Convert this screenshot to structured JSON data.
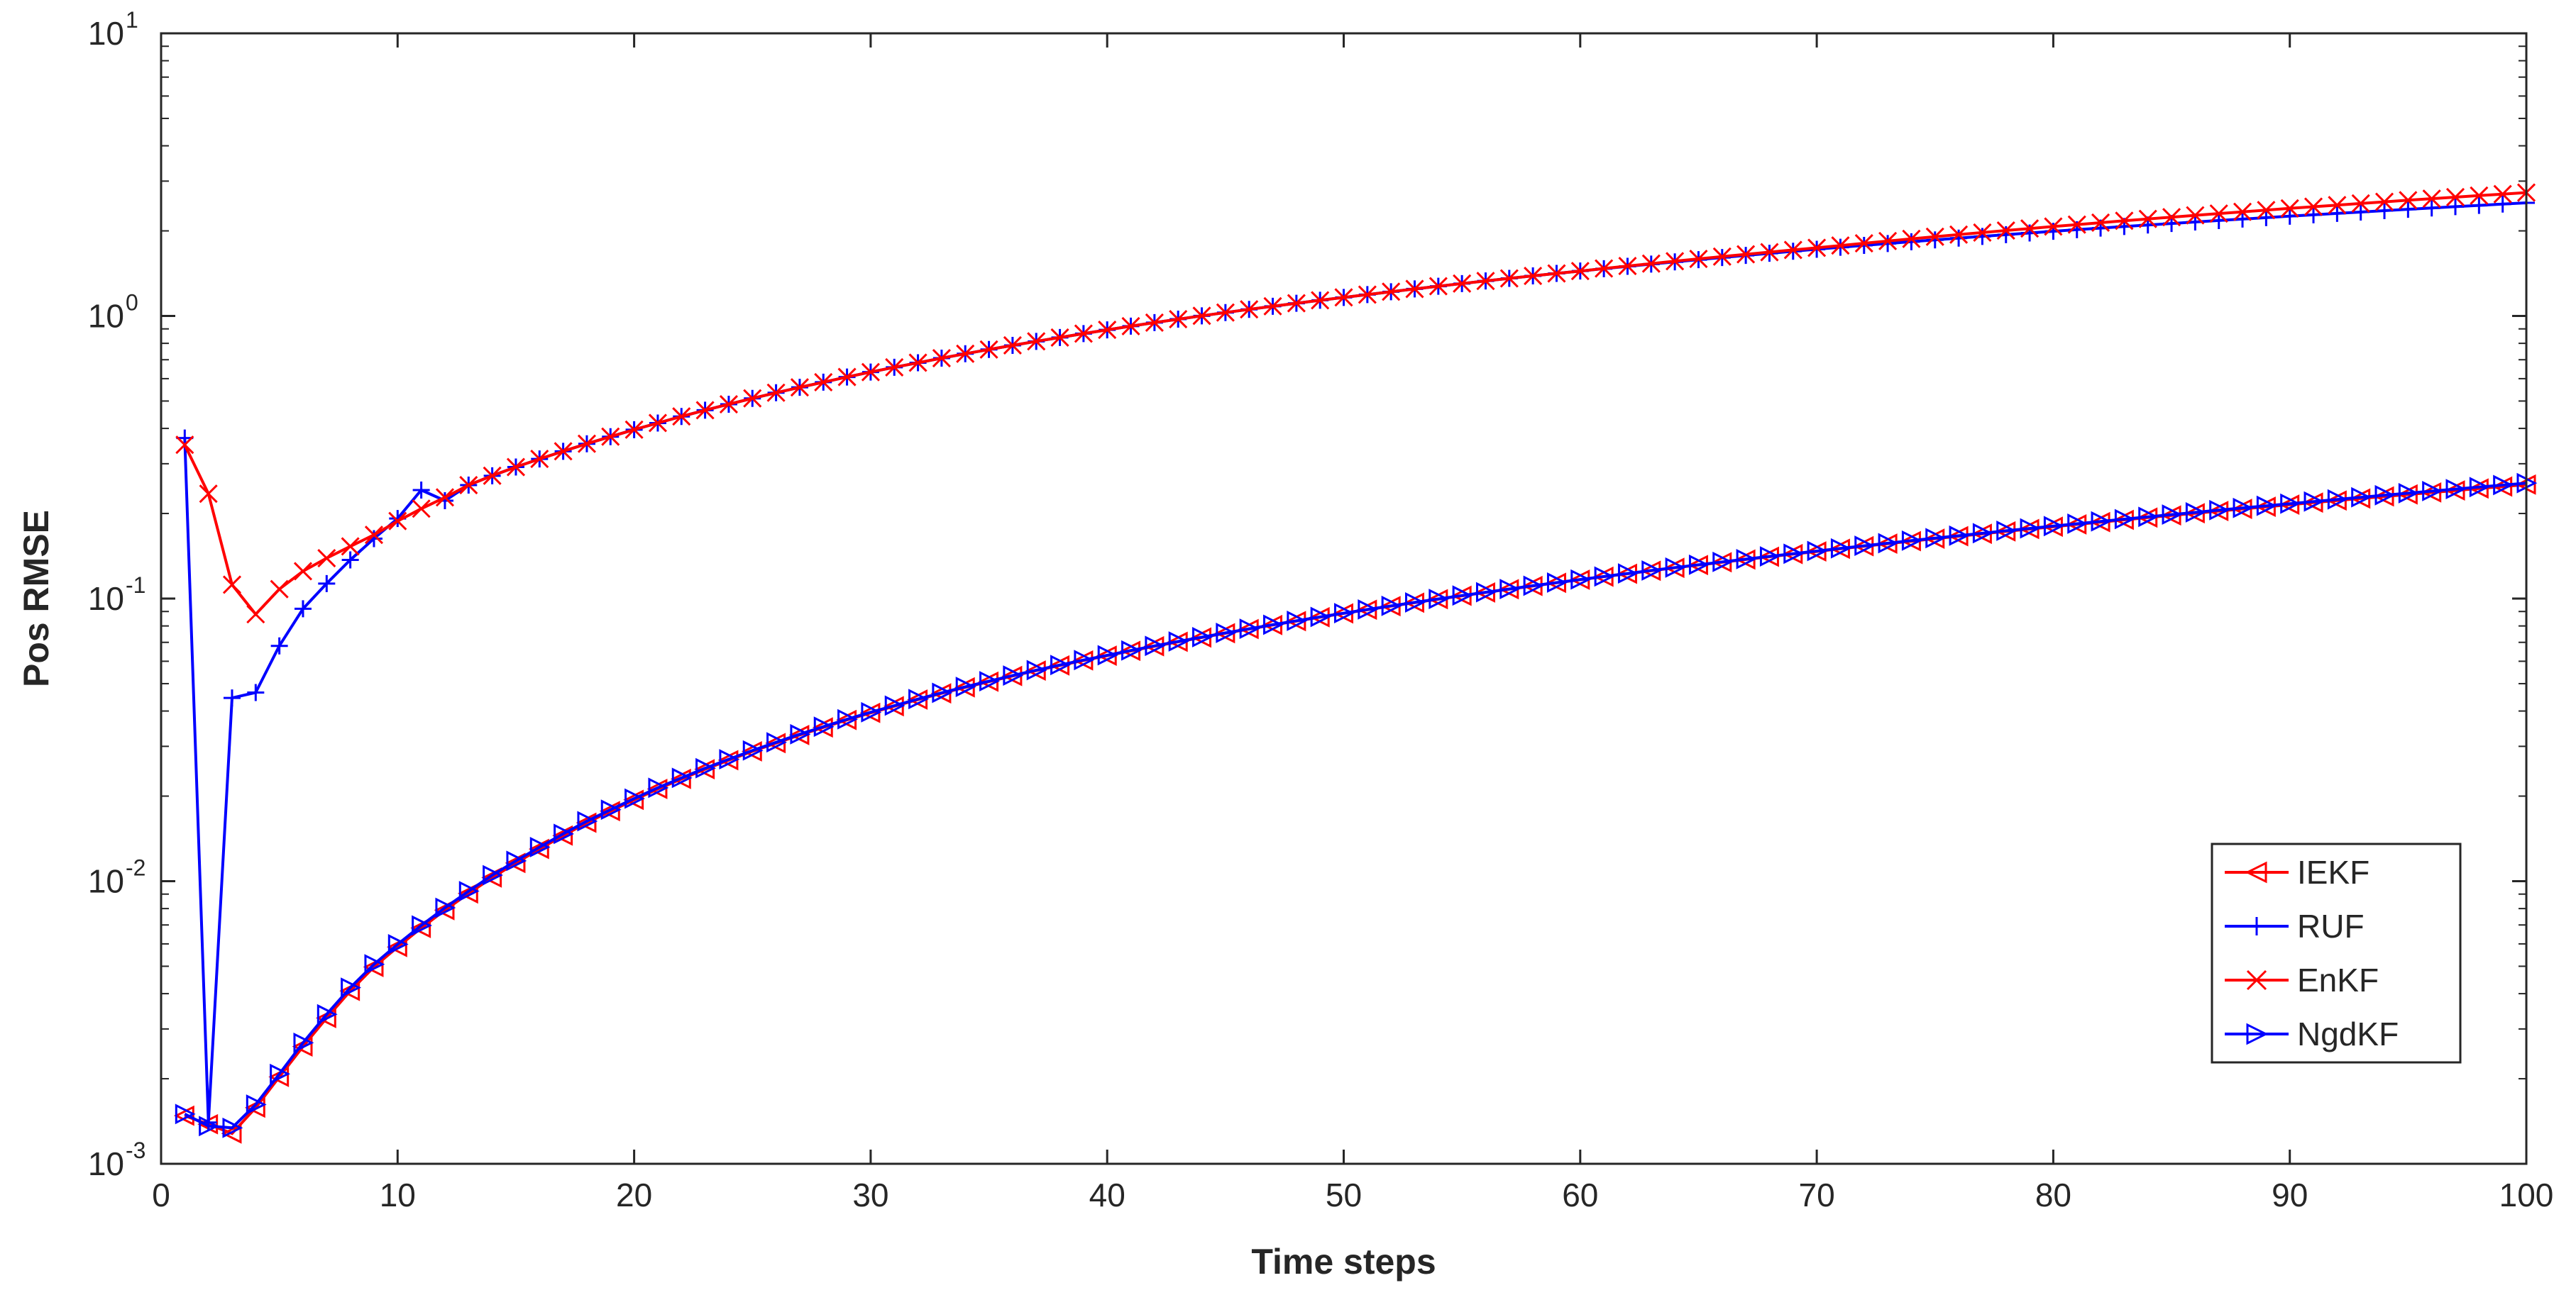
{
  "chart_data": {
    "type": "line",
    "xlabel": "Time steps",
    "ylabel": "Pos RMSE",
    "yscale": "log",
    "xlim": [
      0,
      100
    ],
    "ylim": [
      0.001,
      10
    ],
    "x_ticks": [
      0,
      10,
      20,
      30,
      40,
      50,
      60,
      70,
      80,
      90,
      100
    ],
    "y_ticks": [
      {
        "value": 0.001,
        "base": "10",
        "exp": "-3"
      },
      {
        "value": 0.01,
        "base": "10",
        "exp": "-2"
      },
      {
        "value": 0.1,
        "base": "10",
        "exp": "-1"
      },
      {
        "value": 1,
        "base": "10",
        "exp": "0"
      },
      {
        "value": 10,
        "base": "10",
        "exp": "1"
      }
    ],
    "legend_position": "bottom-right",
    "x": [
      1,
      2,
      3,
      4,
      5,
      6,
      7,
      8,
      9,
      10,
      11,
      12,
      13,
      14,
      15,
      16,
      17,
      18,
      19,
      20,
      21,
      22,
      23,
      24,
      25,
      26,
      27,
      28,
      29,
      30,
      31,
      32,
      33,
      34,
      35,
      36,
      37,
      38,
      39,
      40,
      41,
      42,
      43,
      44,
      45,
      46,
      47,
      48,
      49,
      50,
      51,
      52,
      53,
      54,
      55,
      56,
      57,
      58,
      59,
      60,
      61,
      62,
      63,
      64,
      65,
      66,
      67,
      68,
      69,
      70,
      71,
      72,
      73,
      74,
      75,
      76,
      77,
      78,
      79,
      80,
      81,
      82,
      83,
      84,
      85,
      86,
      87,
      88,
      89,
      90,
      91,
      92,
      93,
      94,
      95,
      96,
      97,
      98,
      99,
      100
    ],
    "series": [
      {
        "name": "IEKF",
        "color": "#ff0000",
        "marker": "triangle-left",
        "values": [
          0.00148,
          0.00138,
          0.00128,
          0.00158,
          0.00203,
          0.0026,
          0.00328,
          0.00409,
          0.00497,
          0.00585,
          0.00683,
          0.0079,
          0.00905,
          0.0103,
          0.0116,
          0.013,
          0.0145,
          0.0161,
          0.0177,
          0.0194,
          0.0212,
          0.023,
          0.0249,
          0.0268,
          0.0288,
          0.0308,
          0.0329,
          0.035,
          0.0372,
          0.0394,
          0.0416,
          0.0439,
          0.0462,
          0.0485,
          0.0508,
          0.0532,
          0.0556,
          0.058,
          0.0604,
          0.0628,
          0.0653,
          0.0678,
          0.0703,
          0.0728,
          0.0754,
          0.078,
          0.0806,
          0.0832,
          0.0859,
          0.0886,
          0.0913,
          0.094,
          0.0967,
          0.0995,
          0.1023,
          0.1051,
          0.1079,
          0.1108,
          0.1137,
          0.1166,
          0.1195,
          0.1224,
          0.1254,
          0.1284,
          0.1314,
          0.1344,
          0.1375,
          0.1406,
          0.1437,
          0.1468,
          0.15,
          0.1532,
          0.1564,
          0.1596,
          0.1629,
          0.1662,
          0.1695,
          0.1728,
          0.1762,
          0.1796,
          0.183,
          0.1864,
          0.1899,
          0.1934,
          0.1969,
          0.2004,
          0.204,
          0.2076,
          0.2112,
          0.2149,
          0.2186,
          0.2223,
          0.226,
          0.2298,
          0.2336,
          0.2374,
          0.2413,
          0.2452,
          0.2491,
          0.253
        ]
      },
      {
        "name": "RUF",
        "color": "#0000ff",
        "marker": "plus",
        "values": [
          0.37,
          0.0014,
          0.0445,
          0.0465,
          0.068,
          0.092,
          0.113,
          0.137,
          0.163,
          0.192,
          0.242,
          0.222,
          0.252,
          0.272,
          0.292,
          0.312,
          0.332,
          0.353,
          0.374,
          0.396,
          0.418,
          0.441,
          0.464,
          0.487,
          0.511,
          0.535,
          0.559,
          0.583,
          0.608,
          0.633,
          0.658,
          0.683,
          0.709,
          0.735,
          0.761,
          0.787,
          0.813,
          0.839,
          0.866,
          0.893,
          0.92,
          0.947,
          0.974,
          1.001,
          1.028,
          1.055,
          1.082,
          1.109,
          1.136,
          1.163,
          1.19,
          1.218,
          1.246,
          1.274,
          1.302,
          1.33,
          1.358,
          1.386,
          1.414,
          1.442,
          1.47,
          1.498,
          1.526,
          1.554,
          1.582,
          1.61,
          1.638,
          1.666,
          1.694,
          1.722,
          1.75,
          1.777,
          1.804,
          1.831,
          1.858,
          1.885,
          1.912,
          1.939,
          1.966,
          1.993,
          2.02,
          2.046,
          2.072,
          2.098,
          2.124,
          2.15,
          2.176,
          2.202,
          2.228,
          2.254,
          2.28,
          2.306,
          2.332,
          2.358,
          2.384,
          2.41,
          2.436,
          2.462,
          2.488,
          2.514
        ]
      },
      {
        "name": "EnKF",
        "color": "#ff0000",
        "marker": "x",
        "values": [
          0.35,
          0.235,
          0.112,
          0.088,
          0.108,
          0.125,
          0.139,
          0.153,
          0.168,
          0.188,
          0.208,
          0.228,
          0.252,
          0.272,
          0.292,
          0.312,
          0.332,
          0.353,
          0.374,
          0.396,
          0.418,
          0.441,
          0.464,
          0.487,
          0.511,
          0.535,
          0.559,
          0.583,
          0.608,
          0.633,
          0.658,
          0.683,
          0.709,
          0.735,
          0.761,
          0.787,
          0.813,
          0.839,
          0.866,
          0.893,
          0.92,
          0.947,
          0.974,
          1.001,
          1.028,
          1.055,
          1.082,
          1.109,
          1.136,
          1.163,
          1.19,
          1.218,
          1.246,
          1.274,
          1.302,
          1.33,
          1.358,
          1.386,
          1.414,
          1.442,
          1.472,
          1.502,
          1.532,
          1.562,
          1.592,
          1.622,
          1.652,
          1.682,
          1.712,
          1.742,
          1.775,
          1.808,
          1.841,
          1.874,
          1.907,
          1.94,
          1.973,
          2.006,
          2.039,
          2.072,
          2.105,
          2.138,
          2.171,
          2.204,
          2.237,
          2.27,
          2.303,
          2.336,
          2.369,
          2.402,
          2.435,
          2.468,
          2.501,
          2.534,
          2.567,
          2.6,
          2.633,
          2.666,
          2.699,
          2.732
        ]
      },
      {
        "name": "NgdKF",
        "color": "#0000ff",
        "marker": "triangle-right",
        "values": [
          0.0015,
          0.00136,
          0.00134,
          0.00162,
          0.00208,
          0.00268,
          0.00338,
          0.0042,
          0.00508,
          0.00598,
          0.00697,
          0.00805,
          0.00922,
          0.0105,
          0.0118,
          0.0132,
          0.0147,
          0.0163,
          0.0179,
          0.0196,
          0.0214,
          0.0232,
          0.0251,
          0.027,
          0.029,
          0.031,
          0.0331,
          0.0352,
          0.0374,
          0.0396,
          0.0418,
          0.0441,
          0.0464,
          0.0487,
          0.051,
          0.0534,
          0.0558,
          0.0582,
          0.0606,
          0.063,
          0.0655,
          0.068,
          0.0705,
          0.073,
          0.0756,
          0.0782,
          0.0808,
          0.0834,
          0.0861,
          0.0888,
          0.0915,
          0.0942,
          0.0969,
          0.0997,
          0.1025,
          0.1053,
          0.1081,
          0.111,
          0.1139,
          0.1168,
          0.1197,
          0.1227,
          0.1257,
          0.1287,
          0.1317,
          0.1348,
          0.1379,
          0.141,
          0.1441,
          0.1473,
          0.1505,
          0.1537,
          0.157,
          0.1603,
          0.1636,
          0.1669,
          0.1703,
          0.1737,
          0.1771,
          0.1805,
          0.184,
          0.1875,
          0.191,
          0.1946,
          0.1982,
          0.2018,
          0.2055,
          0.2092,
          0.2129,
          0.2167,
          0.2205,
          0.2243,
          0.2282,
          0.2321,
          0.236,
          0.24,
          0.244,
          0.248,
          0.2521,
          0.2562
        ]
      }
    ]
  }
}
